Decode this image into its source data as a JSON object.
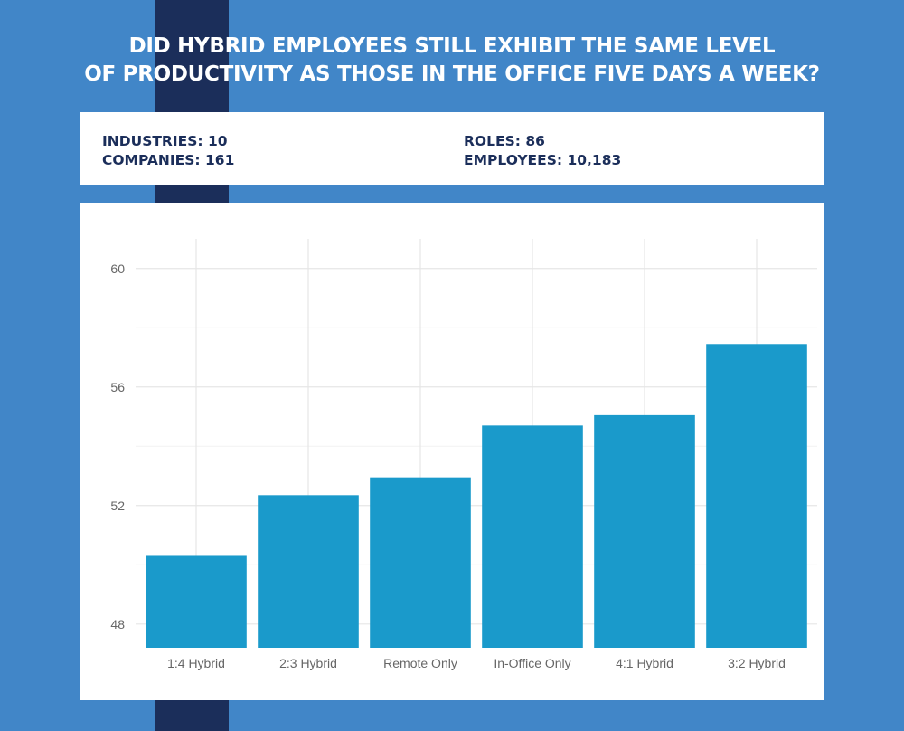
{
  "title": {
    "line1": "DID HYBRID EMPLOYEES STILL EXHIBIT THE SAME LEVEL",
    "line2": "OF PRODUCTIVITY AS THOSE IN THE OFFICE FIVE DAYS A WEEK?"
  },
  "stats": {
    "industries": "INDUSTRIES: 10",
    "companies": "COMPANIES: 161",
    "roles": "ROLES: 86",
    "employees": "EMPLOYEES: 10,183"
  },
  "colors": {
    "background": "#4186c8",
    "stripe": "#1b2e5a",
    "bar": "#1a9acb",
    "text_dark": "#1b2e5a"
  },
  "chart_data": {
    "type": "bar",
    "title": "",
    "xlabel": "",
    "ylabel": "",
    "categories": [
      "1:4 Hybrid",
      "2:3 Hybrid",
      "Remote Only",
      "In-Office Only",
      "4:1 Hybrid",
      "3:2 Hybrid"
    ],
    "values": [
      50.3,
      52.35,
      52.95,
      54.7,
      55.05,
      57.45
    ],
    "ylim": [
      47.2,
      61
    ],
    "yticks": [
      48,
      52,
      56,
      60
    ],
    "ytick_labels": [
      "48",
      "52",
      "56",
      "60"
    ],
    "minor_gridlines": [
      50,
      54,
      58
    ],
    "grid": true,
    "legend": "none"
  }
}
